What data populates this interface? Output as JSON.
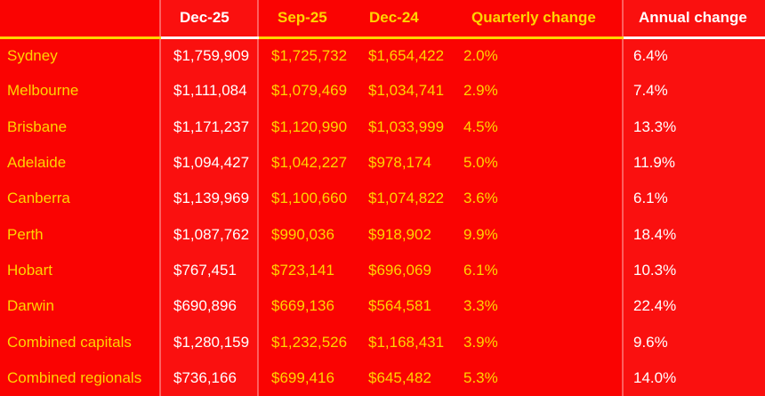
{
  "colors": {
    "background_red": "#fa0302",
    "accent_yellow": "#ffd400",
    "highlight_text_white": "#ffffff",
    "divider_light_red": "rgba(255,255,255,0.35)"
  },
  "table": {
    "headers": [
      {
        "label": "",
        "highlight": false
      },
      {
        "label": "Dec-25",
        "highlight": true
      },
      {
        "label": "Sep-25",
        "highlight": false
      },
      {
        "label": "Dec-24",
        "highlight": false
      },
      {
        "label": "Quarterly change",
        "highlight": false
      },
      {
        "label": "Annual change",
        "highlight": true
      }
    ],
    "rows": [
      {
        "region": "Sydney",
        "dec25": "$1,759,909",
        "sep25": "$1,725,732",
        "dec24": "$1,654,422",
        "quarterly_change": "2.0%",
        "annual_change": "6.4%"
      },
      {
        "region": "Melbourne",
        "dec25": "$1,111,084",
        "sep25": "$1,079,469",
        "dec24": "$1,034,741",
        "quarterly_change": "2.9%",
        "annual_change": "7.4%"
      },
      {
        "region": "Brisbane",
        "dec25": "$1,171,237",
        "sep25": "$1,120,990",
        "dec24": "$1,033,999",
        "quarterly_change": "4.5%",
        "annual_change": "13.3%"
      },
      {
        "region": "Adelaide",
        "dec25": "$1,094,427",
        "sep25": "$1,042,227",
        "dec24": "$978,174",
        "quarterly_change": "5.0%",
        "annual_change": "11.9%"
      },
      {
        "region": "Canberra",
        "dec25": "$1,139,969",
        "sep25": "$1,100,660",
        "dec24": "$1,074,822",
        "quarterly_change": "3.6%",
        "annual_change": "6.1%"
      },
      {
        "region": "Perth",
        "dec25": "$1,087,762",
        "sep25": "$990,036",
        "dec24": "$918,902",
        "quarterly_change": "9.9%",
        "annual_change": "18.4%"
      },
      {
        "region": "Hobart",
        "dec25": "$767,451",
        "sep25": "$723,141",
        "dec24": "$696,069",
        "quarterly_change": "6.1%",
        "annual_change": "10.3%"
      },
      {
        "region": "Darwin",
        "dec25": "$690,896",
        "sep25": "$669,136",
        "dec24": "$564,581",
        "quarterly_change": "3.3%",
        "annual_change": "22.4%"
      },
      {
        "region": "Combined capitals",
        "dec25": "$1,280,159",
        "sep25": "$1,232,526",
        "dec24": "$1,168,431",
        "quarterly_change": "3.9%",
        "annual_change": "9.6%"
      },
      {
        "region": "Combined regionals",
        "dec25": "$736,166",
        "sep25": "$699,416",
        "dec24": "$645,482",
        "quarterly_change": "5.3%",
        "annual_change": "14.0%"
      }
    ]
  },
  "chart_data": {
    "type": "table",
    "title": "",
    "columns": [
      "",
      "Dec-25",
      "Sep-25",
      "Dec-24",
      "Quarterly change",
      "Annual change"
    ],
    "rows": [
      [
        "Sydney",
        "$1,759,909",
        "$1,725,732",
        "$1,654,422",
        "2.0%",
        "6.4%"
      ],
      [
        "Melbourne",
        "$1,111,084",
        "$1,079,469",
        "$1,034,741",
        "2.9%",
        "7.4%"
      ],
      [
        "Brisbane",
        "$1,171,237",
        "$1,120,990",
        "$1,033,999",
        "4.5%",
        "13.3%"
      ],
      [
        "Adelaide",
        "$1,094,427",
        "$1,042,227",
        "$978,174",
        "5.0%",
        "11.9%"
      ],
      [
        "Canberra",
        "$1,139,969",
        "$1,100,660",
        "$1,074,822",
        "3.6%",
        "6.1%"
      ],
      [
        "Perth",
        "$1,087,762",
        "$990,036",
        "$918,902",
        "9.9%",
        "18.4%"
      ],
      [
        "Hobart",
        "$767,451",
        "$723,141",
        "$696,069",
        "6.1%",
        "10.3%"
      ],
      [
        "Darwin",
        "$690,896",
        "$669,136",
        "$564,581",
        "3.3%",
        "22.4%"
      ],
      [
        "Combined capitals",
        "$1,280,159",
        "$1,232,526",
        "$1,168,431",
        "3.9%",
        "9.6%"
      ],
      [
        "Combined regionals",
        "$736,166",
        "$699,416",
        "$645,482",
        "5.3%",
        "14.0%"
      ]
    ],
    "layout_hints": {
      "highlighted_columns": [
        "Dec-25",
        "Annual change"
      ],
      "header_underline": "yellow, white under highlighted columns",
      "background": "red"
    }
  }
}
